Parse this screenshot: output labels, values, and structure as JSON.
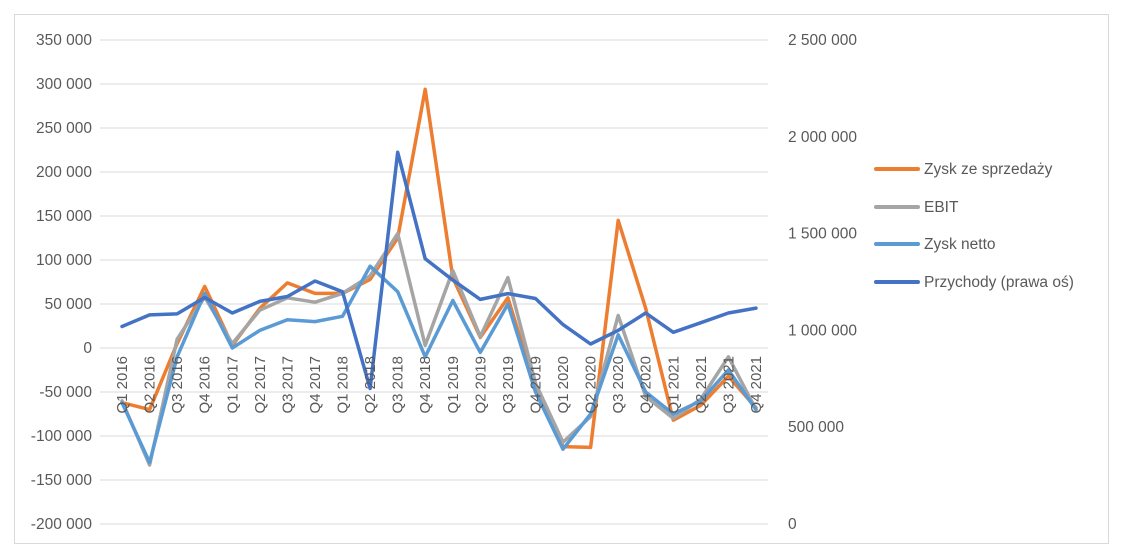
{
  "chart_data": {
    "type": "line",
    "title": "",
    "categories": [
      "Q1 2016",
      "Q2 2016",
      "Q3 2016",
      "Q4 2016",
      "Q1 2017",
      "Q2 2017",
      "Q3 2017",
      "Q4 2017",
      "Q1 2018",
      "Q2 2018",
      "Q3 2018",
      "Q4 2018",
      "Q1 2019",
      "Q2 2019",
      "Q3 2019",
      "Q4 2019",
      "Q1 2020",
      "Q2 2020",
      "Q3 2020",
      "Q4 2020",
      "Q1 2021",
      "Q2 2021",
      "Q3 2021",
      "Q4 2021"
    ],
    "y_left": {
      "ticks": [
        350000,
        300000,
        250000,
        200000,
        150000,
        100000,
        50000,
        0,
        -50000,
        -100000,
        -150000,
        -200000
      ],
      "tick_labels": [
        "350 000",
        "300 000",
        "250 000",
        "200 000",
        "150 000",
        "100 000",
        "50 000",
        "0",
        "-50 000",
        "-100 000",
        "-150 000",
        "-200 000"
      ],
      "ylim": [
        -200000,
        350000
      ]
    },
    "y_right": {
      "ticks": [
        2500000,
        2000000,
        1500000,
        1000000,
        500000,
        0
      ],
      "tick_labels": [
        "2 500 000",
        "2 000 000",
        "1 500 000",
        "1 000 000",
        "500 000",
        "0"
      ],
      "ylim": [
        0,
        2500000
      ]
    },
    "legend_position": "right",
    "grid": true,
    "series": [
      {
        "name": "Zysk ze sprzedaży",
        "axis": "left",
        "color": "#ED7D31",
        "values": [
          -62000,
          -70000,
          5000,
          70000,
          3000,
          45000,
          74000,
          62000,
          62000,
          78000,
          125000,
          294000,
          80000,
          12000,
          57000,
          -45000,
          -112000,
          -113000,
          145000,
          45000,
          -82000,
          -65000,
          -32000,
          -68000
        ]
      },
      {
        "name": "EBIT",
        "axis": "left",
        "color": "#A5A5A5",
        "values": [
          -60000,
          -133000,
          10000,
          58000,
          5000,
          43000,
          57000,
          52000,
          62000,
          82000,
          130000,
          3000,
          88000,
          13000,
          80000,
          -40000,
          -107000,
          -78000,
          37000,
          -55000,
          -80000,
          -58000,
          -10000,
          -70000
        ]
      },
      {
        "name": "Zysk netto",
        "axis": "left",
        "color": "#5B9BD5",
        "values": [
          -62000,
          -130000,
          -10000,
          62000,
          0,
          20000,
          32000,
          30000,
          36000,
          93000,
          64000,
          -10000,
          54000,
          -5000,
          50000,
          -50000,
          -115000,
          -75000,
          15000,
          -50000,
          -75000,
          -60000,
          -25000,
          -70000
        ]
      },
      {
        "name": "Przychody (prawa oś)",
        "axis": "right",
        "color": "#4472C4",
        "values": [
          1020000,
          1080000,
          1085000,
          1170000,
          1090000,
          1150000,
          1175000,
          1255000,
          1200000,
          700000,
          1920000,
          1370000,
          1260000,
          1160000,
          1190000,
          1165000,
          1030000,
          930000,
          1000000,
          1090000,
          990000,
          1040000,
          1090000,
          1115000
        ]
      }
    ]
  }
}
